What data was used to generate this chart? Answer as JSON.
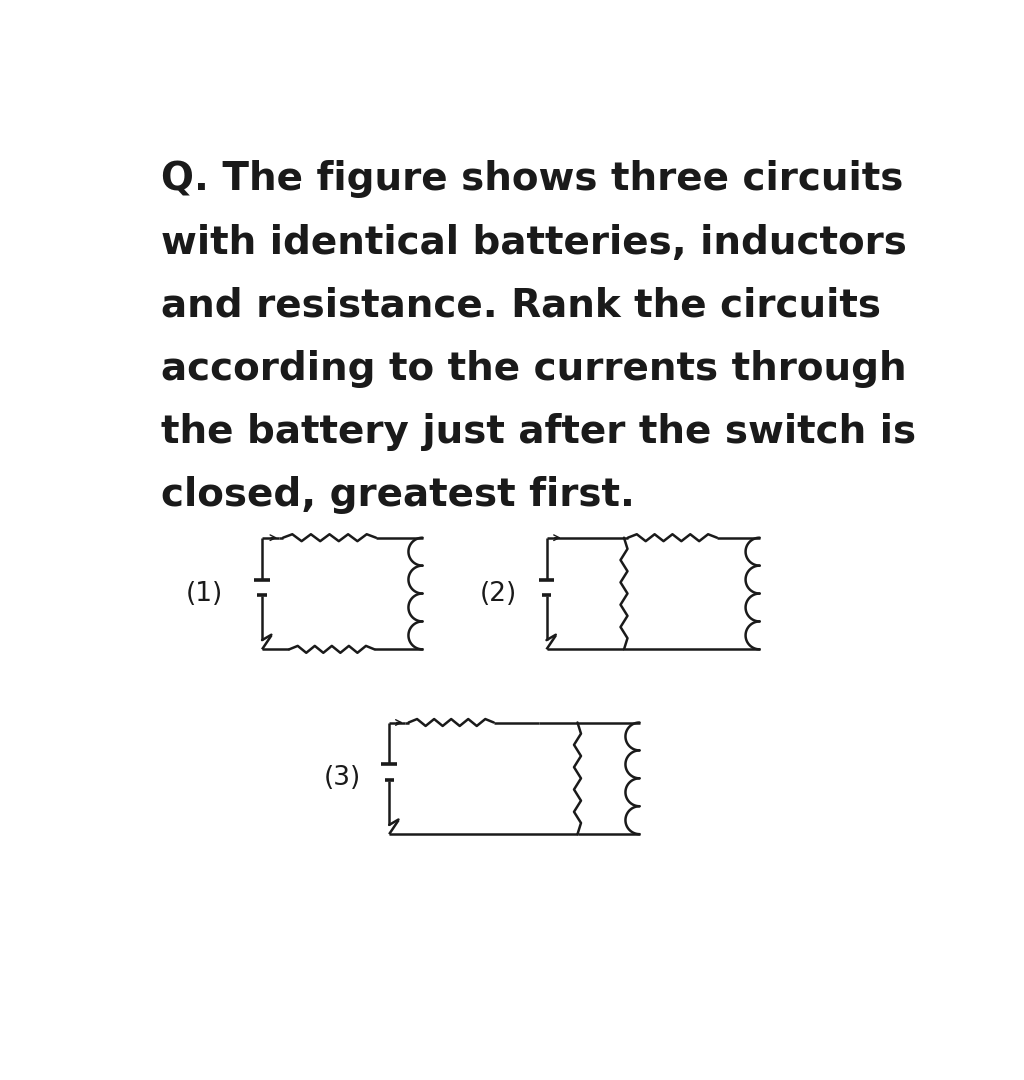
{
  "bg_color": "#ffffff",
  "line_color": "#1a1a1a",
  "lw": 1.8,
  "label_fontsize": 19,
  "title_fontsize": 28,
  "title_lines": [
    "Q. The figure shows three circuits",
    "with identical batteries, inductors",
    "and resistance. Rank the circuits",
    "according to the currents through",
    "the battery just after the switch is",
    "closed, greatest first."
  ],
  "circuit1_label": "(1)",
  "circuit2_label": "(2)",
  "circuit3_label": "(3)",
  "fig_width": 10.24,
  "fig_height": 10.8,
  "dpi": 100
}
